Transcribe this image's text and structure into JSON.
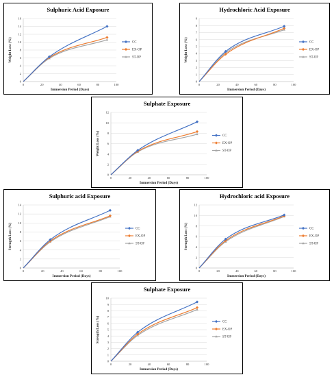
{
  "colors": {
    "CC": "#4472C4",
    "EX-OP": "#ED7D31",
    "ST-OP": "#A5A5A5",
    "grid": "#D9D9D9"
  },
  "chart_data": [
    {
      "type": "line",
      "title": "Sulphuric Acid Exposure",
      "xlabel": "Immersion Period (Days)",
      "ylabel": "Weight Loss (%)",
      "xlim": [
        0,
        100
      ],
      "xticks": [
        0,
        20,
        40,
        60,
        80,
        100
      ],
      "ylim": [
        0,
        16
      ],
      "yticks": [
        0,
        2,
        4,
        6,
        8,
        10,
        12,
        14,
        16
      ],
      "x": [
        0,
        28,
        90
      ],
      "grid": "horizontal",
      "legend": "right",
      "series": [
        {
          "name": "CC",
          "values": [
            0,
            6.3,
            14.0
          ]
        },
        {
          "name": "EX-OP",
          "values": [
            0,
            6.1,
            11.2
          ]
        },
        {
          "name": "ST-OP",
          "values": [
            0,
            5.9,
            10.6
          ]
        }
      ]
    },
    {
      "type": "line",
      "title": "Hydrochloric Acid Exposure",
      "xlabel": "Immersion Period (Days)",
      "ylabel": "Weight Loss (%)",
      "xlim": [
        0,
        100
      ],
      "xticks": [
        0,
        20,
        40,
        60,
        80,
        100
      ],
      "ylim": [
        0,
        9
      ],
      "yticks": [
        0,
        1,
        2,
        3,
        4,
        5,
        6,
        7,
        8,
        9
      ],
      "x": [
        0,
        28,
        90
      ],
      "grid": "horizontal",
      "legend": "right",
      "series": [
        {
          "name": "CC",
          "values": [
            0,
            4.3,
            7.9
          ]
        },
        {
          "name": "EX-OP",
          "values": [
            0,
            3.9,
            7.6
          ]
        },
        {
          "name": "ST-OP",
          "values": [
            0,
            4.1,
            7.4
          ]
        }
      ]
    },
    {
      "type": "line",
      "title": "Sulphate Exposure",
      "xlabel": "Immersion Period (Days)",
      "ylabel": "Weight Loss (%)",
      "xlim": [
        0,
        100
      ],
      "xticks": [
        0,
        20,
        40,
        60,
        80,
        100
      ],
      "ylim": [
        0,
        12
      ],
      "yticks": [
        0,
        2,
        4,
        6,
        8,
        10,
        12
      ],
      "x": [
        0,
        28,
        90
      ],
      "grid": "horizontal",
      "legend": "right",
      "series": [
        {
          "name": "CC",
          "values": [
            0,
            4.7,
            10.2
          ]
        },
        {
          "name": "EX-OP",
          "values": [
            0,
            4.5,
            8.3
          ]
        },
        {
          "name": "ST-OP",
          "values": [
            0,
            4.4,
            7.8
          ]
        }
      ]
    },
    {
      "type": "line",
      "title": "Sulphuric acid Exposure",
      "xlabel": "Immersion Period (Days)",
      "ylabel": "Strength Loss (%)",
      "xlim": [
        0,
        100
      ],
      "xticks": [
        0,
        20,
        40,
        60,
        80,
        100
      ],
      "ylim": [
        0,
        14
      ],
      "yticks": [
        0,
        2,
        4,
        6,
        8,
        10,
        12,
        14
      ],
      "x": [
        0,
        28,
        90
      ],
      "grid": "horizontal",
      "legend": "right",
      "series": [
        {
          "name": "CC",
          "values": [
            0,
            6.3,
            12.8
          ]
        },
        {
          "name": "EX-OP",
          "values": [
            0,
            6.0,
            11.6
          ]
        },
        {
          "name": "ST-OP",
          "values": [
            0,
            5.8,
            11.4
          ]
        }
      ]
    },
    {
      "type": "line",
      "title": "Hydrochloric  acid Exposure",
      "xlabel": "Immersion Period (Days)",
      "ylabel": "Strength Loss (%)",
      "xlim": [
        0,
        100
      ],
      "xticks": [
        0,
        20,
        40,
        60,
        80,
        100
      ],
      "ylim": [
        0,
        12
      ],
      "yticks": [
        0,
        2,
        4,
        6,
        8,
        10,
        12
      ],
      "x": [
        0,
        28,
        90
      ],
      "grid": "horizontal",
      "legend": "right",
      "series": [
        {
          "name": "CC",
          "values": [
            0,
            5.5,
            10.1
          ]
        },
        {
          "name": "EX-OP",
          "values": [
            0,
            5.2,
            9.9
          ]
        },
        {
          "name": "ST-OP",
          "values": [
            0,
            5.0,
            9.8
          ]
        }
      ]
    },
    {
      "type": "line",
      "title": "Sulphate Exposure",
      "xlabel": "Immersion Period (Days)",
      "ylabel": "Strength Loss (%)",
      "xlim": [
        0,
        100
      ],
      "xticks": [
        0,
        20,
        40,
        60,
        80,
        100
      ],
      "ylim": [
        0,
        10
      ],
      "yticks": [
        0,
        1,
        2,
        3,
        4,
        5,
        6,
        7,
        8,
        9,
        10
      ],
      "x": [
        0,
        28,
        90
      ],
      "grid": "horizontal",
      "legend": "right",
      "series": [
        {
          "name": "CC",
          "values": [
            0,
            4.6,
            9.4
          ]
        },
        {
          "name": "EX-OP",
          "values": [
            0,
            4.3,
            8.5
          ]
        },
        {
          "name": "ST-OP",
          "values": [
            0,
            4.1,
            8.2
          ]
        }
      ]
    }
  ]
}
